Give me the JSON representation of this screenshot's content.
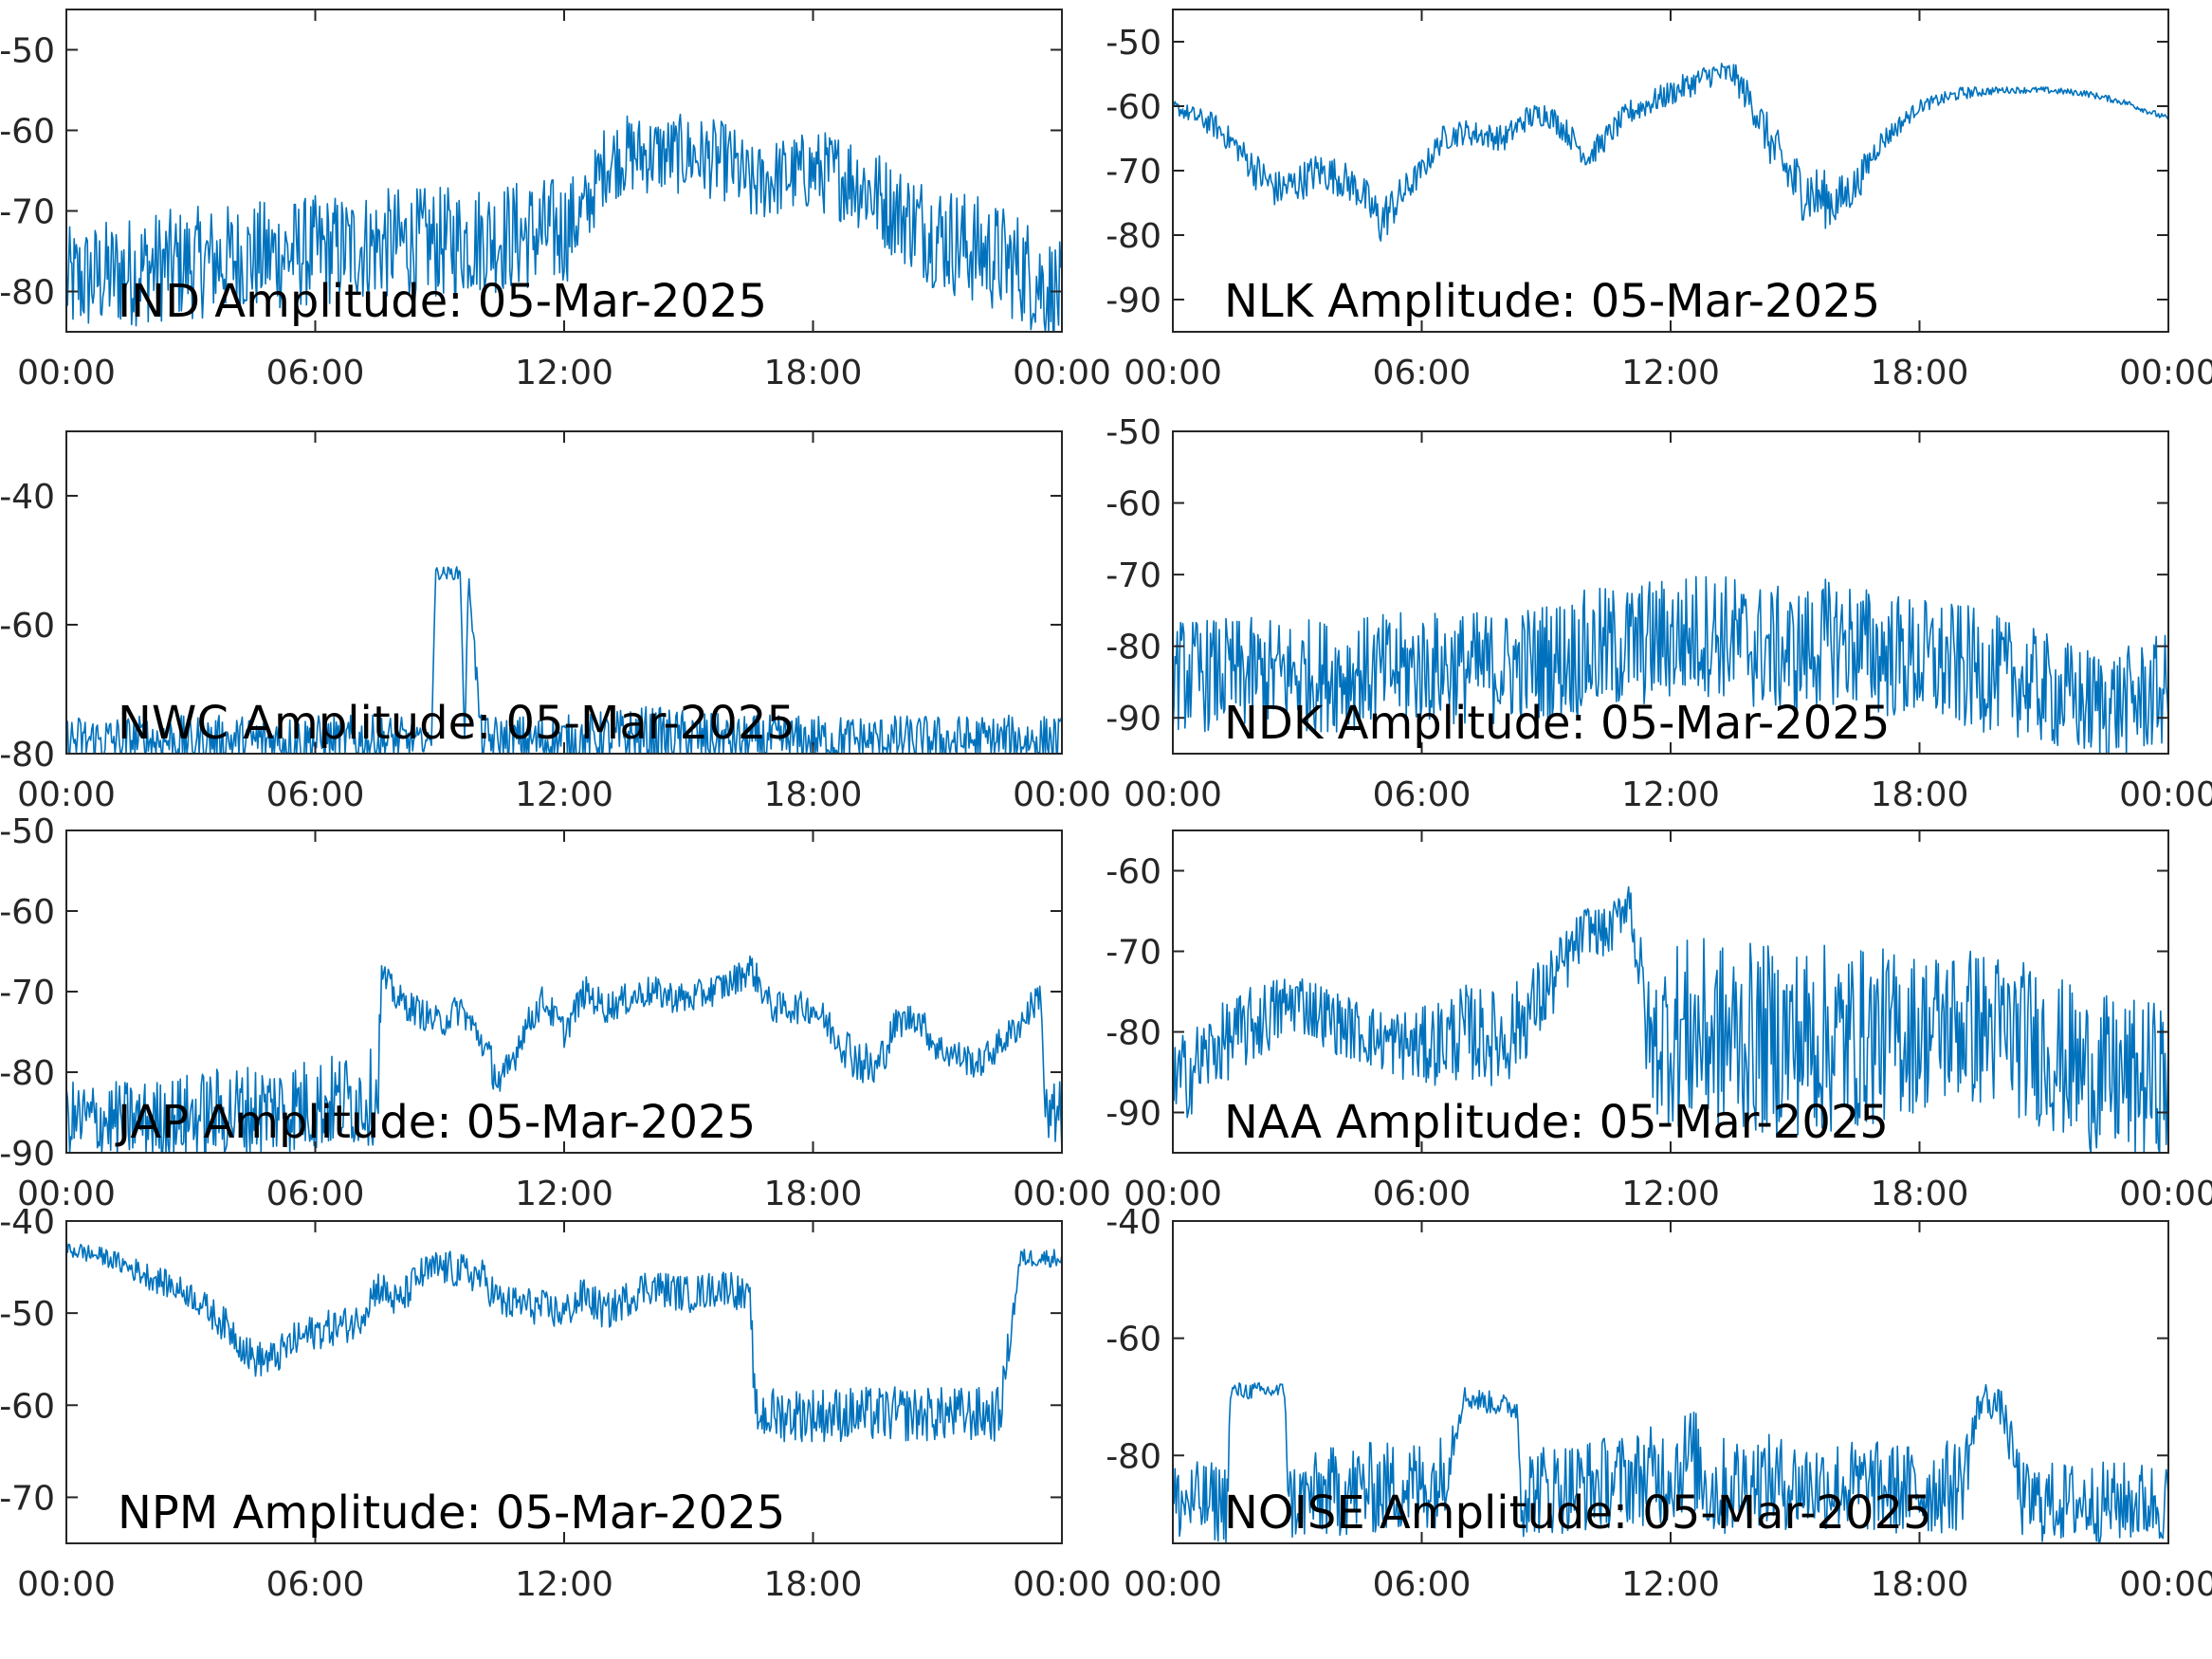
{
  "colors": {
    "series": "#0072BD",
    "axis": "#262626",
    "background": "#ffffff"
  },
  "chart_data": [
    {
      "type": "line",
      "title": "IND Amplitude: 05-Mar-2025",
      "x_ticks": [
        "00:00",
        "06:00",
        "12:00",
        "18:00",
        "00:00"
      ],
      "x_range_hours": [
        0,
        24
      ],
      "y_ticks": [
        "-50",
        "-60",
        "-70",
        "-80"
      ],
      "ylim": [
        -85,
        -45
      ],
      "grid": false,
      "series": [
        {
          "x": [
            0,
            1,
            2,
            3,
            4,
            5,
            6,
            7,
            8,
            9,
            10,
            11,
            12,
            12.5,
            13,
            13.5,
            14,
            15,
            16,
            16.5,
            17,
            18,
            19,
            20,
            21,
            22,
            23,
            24
          ],
          "y": [
            -79,
            -78,
            -77,
            -76.5,
            -76,
            -75.5,
            -75,
            -74.5,
            -74,
            -74,
            -73.5,
            -73,
            -72.5,
            -70,
            -64,
            -63,
            -63,
            -63,
            -64,
            -67,
            -66,
            -65,
            -66,
            -70,
            -73,
            -75,
            -77,
            -81
          ],
          "spread": [
            7,
            7,
            7,
            7,
            7,
            7,
            7,
            7,
            7,
            7,
            7,
            7,
            7,
            5,
            5,
            5,
            5,
            5,
            5,
            5,
            5,
            5,
            6,
            6,
            7,
            7,
            7,
            7
          ]
        }
      ]
    },
    {
      "type": "line",
      "title": "NLK Amplitude: 05-Mar-2025",
      "x_ticks": [
        "00:00",
        "06:00",
        "12:00",
        "18:00",
        "00:00"
      ],
      "x_range_hours": [
        0,
        24
      ],
      "y_ticks": [
        "-50",
        "-60",
        "-70",
        "-80",
        "-90"
      ],
      "ylim": [
        -95,
        -45
      ],
      "grid": false,
      "series": [
        {
          "x": [
            0,
            1,
            1.5,
            2,
            2.5,
            3,
            3.5,
            4,
            4.5,
            5,
            5.5,
            6,
            6.5,
            7,
            8,
            8.5,
            9,
            9.5,
            10,
            11,
            12,
            13,
            13.5,
            14,
            14.5,
            15,
            15.5,
            16,
            16.5,
            17,
            18,
            19,
            20,
            21,
            22,
            23,
            24
          ],
          "y": [
            -60,
            -63,
            -66,
            -70,
            -73,
            -72,
            -70,
            -71,
            -73,
            -78,
            -74,
            -70,
            -65,
            -64,
            -65,
            -62,
            -61,
            -64,
            -68,
            -61,
            -58,
            -55,
            -55,
            -60,
            -67,
            -72,
            -74,
            -75,
            -72,
            -66,
            -60,
            -58,
            -57.5,
            -57.5,
            -58,
            -59.5,
            -62
          ],
          "spread": [
            1,
            2,
            2,
            3,
            3,
            3,
            3,
            3,
            3,
            4,
            3,
            2,
            2,
            2,
            2,
            2,
            2,
            2,
            2,
            2,
            2,
            2,
            2,
            3,
            4,
            5,
            5,
            4,
            3,
            2,
            1,
            1,
            0.5,
            0.5,
            0.5,
            0.5,
            0.5
          ]
        }
      ]
    },
    {
      "type": "line",
      "title": "NWC Amplitude: 05-Mar-2025",
      "x_ticks": [
        "00:00",
        "06:00",
        "12:00",
        "18:00",
        "00:00"
      ],
      "x_range_hours": [
        0,
        24
      ],
      "y_ticks": [
        "-40",
        "-60",
        "-80"
      ],
      "ylim": [
        -80,
        -30
      ],
      "grid": false,
      "series": [
        {
          "x": [
            0,
            2,
            4,
            6,
            8,
            8.8,
            8.9,
            9.5,
            9.6,
            9.7,
            10,
            12,
            14,
            16,
            18,
            20,
            22,
            24
          ],
          "y": [
            -78,
            -78,
            -78,
            -78,
            -78,
            -78,
            -52,
            -52,
            -78,
            -52,
            -78,
            -78,
            -77.5,
            -78,
            -78,
            -78,
            -78,
            -78
          ],
          "spread": [
            4,
            4,
            4,
            4,
            4,
            1,
            1,
            1,
            1,
            1,
            4,
            4,
            5,
            4,
            4,
            4,
            4,
            4
          ]
        }
      ]
    },
    {
      "type": "line",
      "title": "NDK Amplitude: 05-Mar-2025",
      "x_ticks": [
        "00:00",
        "06:00",
        "12:00",
        "18:00",
        "00:00"
      ],
      "x_range_hours": [
        0,
        24
      ],
      "y_ticks": [
        "-50",
        "-60",
        "-70",
        "-80",
        "-90"
      ],
      "ylim": [
        -95,
        -50
      ],
      "grid": false,
      "series": [
        {
          "x": [
            0,
            2,
            4,
            6,
            8,
            10,
            11,
            12,
            13,
            14,
            15,
            16,
            17,
            18,
            19,
            20,
            21,
            22,
            23,
            24
          ],
          "y": [
            -84,
            -84,
            -84,
            -83,
            -83,
            -81,
            -80,
            -79,
            -78,
            -80,
            -81,
            -79,
            -81,
            -82,
            -83,
            -84,
            -86,
            -88,
            -88,
            -86
          ],
          "spread": [
            8,
            8,
            8,
            8,
            8,
            9,
            9,
            9,
            9,
            9,
            9,
            9,
            9,
            9,
            9,
            8,
            8,
            8,
            8,
            8
          ]
        }
      ]
    },
    {
      "type": "line",
      "title": "JAP Amplitude: 05-Mar-2025",
      "x_ticks": [
        "00:00",
        "06:00",
        "12:00",
        "18:00",
        "00:00"
      ],
      "x_range_hours": [
        0,
        24
      ],
      "y_ticks": [
        "-50",
        "-60",
        "-70",
        "-80",
        "-90"
      ],
      "ylim": [
        -90,
        -50
      ],
      "grid": false,
      "series": [
        {
          "x": [
            0,
            2,
            4,
            6,
            7.5,
            7.6,
            8,
            9,
            9.5,
            10,
            10.5,
            11,
            11.5,
            12,
            12.5,
            13,
            14,
            15,
            16,
            16.5,
            17,
            18,
            19,
            19.5,
            20,
            20.5,
            21,
            22,
            23,
            23.5,
            23.6,
            24
          ],
          "y": [
            -86,
            -86,
            -85,
            -84,
            -83,
            -68,
            -71,
            -74,
            -72,
            -76,
            -82,
            -75,
            -71,
            -75,
            -70,
            -72,
            -70,
            -71,
            -69,
            -67,
            -72,
            -72,
            -78,
            -80,
            -74,
            -73,
            -77,
            -79,
            -74,
            -70,
            -86,
            -86
          ],
          "spread": [
            5,
            5,
            6,
            6,
            6,
            2,
            2,
            2,
            2,
            2,
            3,
            2,
            2,
            2,
            2,
            2,
            2,
            2,
            2,
            2,
            2,
            2,
            3,
            3,
            2,
            2,
            2,
            2,
            2,
            2,
            5,
            5
          ]
        }
      ]
    },
    {
      "type": "line",
      "title": "NAA Amplitude: 05-Mar-2025",
      "x_ticks": [
        "00:00",
        "06:00",
        "12:00",
        "18:00",
        "00:00"
      ],
      "x_range_hours": [
        0,
        24
      ],
      "y_ticks": [
        "-60",
        "-70",
        "-80",
        "-90"
      ],
      "ylim": [
        -95,
        -55
      ],
      "grid": false,
      "series": [
        {
          "x": [
            0,
            1,
            2,
            3,
            4,
            5,
            6,
            7,
            8,
            9,
            10,
            10.5,
            11,
            11.5,
            12,
            14,
            16,
            18,
            19,
            20,
            21,
            22,
            23,
            24
          ],
          "y": [
            -87,
            -82,
            -79,
            -76,
            -79,
            -81,
            -82,
            -80,
            -81,
            -75,
            -67,
            -68,
            -63,
            -82,
            -80,
            -81,
            -81,
            -80,
            -79,
            -80,
            -82,
            -85,
            -86,
            -86
          ],
          "spread": [
            6,
            5,
            5,
            4,
            4,
            4,
            5,
            6,
            6,
            5,
            3,
            3,
            3,
            8,
            12,
            12,
            12,
            10,
            10,
            10,
            10,
            10,
            10,
            10
          ]
        }
      ]
    },
    {
      "type": "line",
      "title": "NPM Amplitude: 05-Mar-2025",
      "x_ticks": [
        "00:00",
        "06:00",
        "12:00",
        "18:00",
        "00:00"
      ],
      "x_range_hours": [
        0,
        24
      ],
      "y_ticks": [
        "-40",
        "-50",
        "-60",
        "-70"
      ],
      "ylim": [
        -75,
        -40
      ],
      "grid": false,
      "series": [
        {
          "x": [
            0,
            1,
            2,
            3,
            4,
            4.5,
            5,
            5.5,
            6,
            7,
            7.5,
            8,
            8.5,
            9,
            10,
            10.5,
            11,
            12,
            12.5,
            13,
            14,
            15,
            16,
            16.5,
            16.6,
            17,
            18,
            20,
            22,
            22.5,
            23,
            23.5,
            24
          ],
          "y": [
            -43,
            -44,
            -46,
            -48,
            -52,
            -55,
            -55,
            -53,
            -52,
            -51,
            -47,
            -49,
            -46,
            -45,
            -46,
            -49,
            -49,
            -50,
            -48,
            -50,
            -47,
            -48,
            -47,
            -49,
            -61,
            -61,
            -61,
            -61,
            -61,
            -61,
            -44,
            -44,
            -44
          ],
          "spread": [
            1,
            1,
            1.5,
            1.5,
            2,
            2,
            2,
            2,
            2,
            2,
            2,
            2,
            2,
            2,
            2,
            2,
            2,
            2,
            2,
            2,
            2,
            2,
            2,
            2,
            3,
            3,
            3,
            3,
            3,
            3,
            1,
            1,
            1
          ]
        }
      ]
    },
    {
      "type": "line",
      "title": "NOISE Amplitude: 05-Mar-2025",
      "x_ticks": [
        "00:00",
        "06:00",
        "12:00",
        "18:00",
        "00:00"
      ],
      "x_range_hours": [
        0,
        24
      ],
      "y_ticks": [
        "-40",
        "-60",
        "-80"
      ],
      "ylim": [
        -95,
        -40
      ],
      "grid": false,
      "series": [
        {
          "x": [
            0,
            1.3,
            1.4,
            2.7,
            2.8,
            4,
            6,
            6.5,
            7,
            8.3,
            8.4,
            10,
            11,
            12,
            12.5,
            13,
            14,
            15,
            16,
            18,
            19,
            19.5,
            20,
            20.5,
            21,
            22,
            24
          ],
          "y": [
            -88,
            -88,
            -69,
            -69,
            -88,
            -86,
            -85,
            -84,
            -70,
            -72,
            -86,
            -85,
            -84,
            -83,
            -80,
            -86,
            -84,
            -85,
            -85,
            -86,
            -85,
            -70,
            -72,
            -88,
            -88,
            -88,
            -88
          ],
          "spread": [
            7,
            7,
            1.5,
            1.5,
            7,
            8,
            8,
            8,
            2,
            2,
            8,
            8,
            8,
            9,
            9,
            9,
            8,
            8,
            8,
            8,
            8,
            3,
            3,
            7,
            7,
            7,
            7
          ]
        }
      ]
    }
  ]
}
